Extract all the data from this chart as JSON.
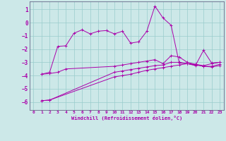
{
  "xlabel": "Windchill (Refroidissement éolien,°C)",
  "background_color": "#cce8e8",
  "grid_color": "#99cccc",
  "line_color": "#aa00aa",
  "xlim": [
    -0.5,
    23.5
  ],
  "ylim": [
    -6.6,
    1.6
  ],
  "xticks": [
    0,
    1,
    2,
    3,
    4,
    5,
    6,
    7,
    8,
    9,
    10,
    11,
    12,
    13,
    14,
    15,
    16,
    17,
    18,
    19,
    20,
    21,
    22,
    23
  ],
  "yticks": [
    1,
    0,
    -1,
    -2,
    -3,
    -4,
    -5,
    -6
  ],
  "line_upper_x": [
    1,
    2,
    3,
    4,
    5,
    6,
    7,
    8,
    9,
    10,
    11,
    12,
    13,
    14,
    15,
    16,
    17,
    18,
    19,
    20,
    21,
    22,
    23
  ],
  "line_upper_y": [
    -3.9,
    -3.75,
    -1.8,
    -1.75,
    -0.8,
    -0.55,
    -0.85,
    -0.65,
    -0.6,
    -0.85,
    -0.65,
    -1.55,
    -1.45,
    -0.65,
    1.25,
    0.35,
    -0.2,
    -3.05,
    -3.1,
    -3.25,
    -2.1,
    -3.05,
    -3.0
  ],
  "line_mid_x": [
    1,
    2,
    3,
    4,
    10,
    11,
    12,
    13,
    14,
    15,
    16,
    17,
    18,
    19,
    20,
    21,
    22,
    23
  ],
  "line_mid_y": [
    -3.9,
    -3.85,
    -3.75,
    -3.5,
    -3.3,
    -3.2,
    -3.1,
    -3.0,
    -2.9,
    -2.8,
    -3.1,
    -2.5,
    -2.6,
    -3.0,
    -3.15,
    -3.25,
    -3.1,
    -3.0
  ],
  "line_low1_x": [
    1,
    2,
    10,
    11,
    12,
    13,
    14,
    15,
    16,
    17,
    18,
    19,
    20,
    21,
    22,
    23
  ],
  "line_low1_y": [
    -5.9,
    -5.85,
    -3.75,
    -3.65,
    -3.55,
    -3.45,
    -3.35,
    -3.25,
    -3.2,
    -3.0,
    -3.0,
    -3.1,
    -3.2,
    -3.3,
    -3.3,
    -3.15
  ],
  "line_low2_x": [
    1,
    2,
    10,
    11,
    12,
    13,
    14,
    15,
    16,
    17,
    18,
    19,
    20,
    21,
    22,
    23
  ],
  "line_low2_y": [
    -5.9,
    -5.85,
    -4.1,
    -4.0,
    -3.9,
    -3.75,
    -3.6,
    -3.5,
    -3.4,
    -3.3,
    -3.2,
    -3.1,
    -3.15,
    -3.3,
    -3.35,
    -3.25
  ]
}
